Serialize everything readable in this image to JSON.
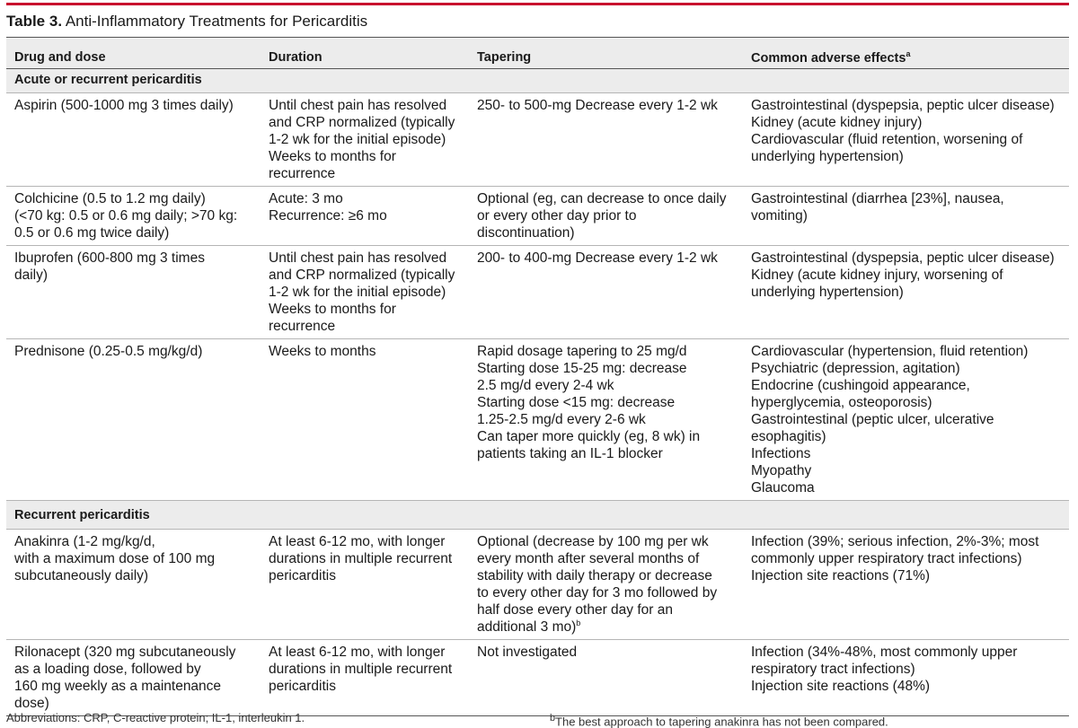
{
  "title": {
    "number": "Table 3.",
    "text": " Anti-Inflammatory Treatments for Pericarditis"
  },
  "headers": {
    "drug": "Drug and dose",
    "duration": "Duration",
    "tapering": "Tapering",
    "adverse": "Common adverse effects",
    "adverse_sup": "a"
  },
  "sections": [
    {
      "label": "Acute or recurrent pericarditis",
      "rows": [
        {
          "drug": [
            "Aspirin (500-1000 mg 3 times daily)"
          ],
          "duration": [
            "Until chest pain has resolved",
            "and CRP normalized (typically",
            "1-2 wk for the initial episode)",
            "Weeks to months for",
            "recurrence"
          ],
          "tapering": [
            "250- to 500-mg Decrease every 1-2 wk"
          ],
          "adverse": [
            "Gastrointestinal (dyspepsia, peptic ulcer disease)",
            "Kidney (acute kidney injury)",
            "Cardiovascular (fluid retention, worsening of",
            "underlying hypertension)"
          ]
        },
        {
          "drug": [
            "Colchicine (0.5 to 1.2 mg daily)",
            "(<70 kg: 0.5 or 0.6 mg daily; >70 kg:",
            "0.5 or 0.6 mg twice daily)"
          ],
          "duration": [
            "Acute: 3 mo",
            "Recurrence: ≥6 mo"
          ],
          "tapering": [
            "Optional (eg, can decrease to once daily",
            "or every other day prior to",
            "discontinuation)"
          ],
          "adverse": [
            "Gastrointestinal (diarrhea [23%], nausea,",
            "vomiting)"
          ]
        },
        {
          "drug": [
            "Ibuprofen (600-800 mg 3 times",
            "daily)"
          ],
          "duration": [
            "Until chest pain has resolved",
            "and CRP normalized (typically",
            "1-2 wk for the initial episode)",
            "Weeks to months for",
            "recurrence"
          ],
          "tapering": [
            "200- to 400-mg Decrease every 1-2 wk"
          ],
          "adverse": [
            "Gastrointestinal (dyspepsia, peptic ulcer disease)",
            "Kidney (acute kidney injury, worsening of",
            "underlying hypertension)"
          ]
        },
        {
          "drug": [
            "Prednisone (0.25-0.5 mg/kg/d)"
          ],
          "duration": [
            "Weeks to months"
          ],
          "tapering": [
            "Rapid dosage tapering to 25 mg/d",
            "Starting dose 15-25 mg: decrease",
            "2.5 mg/d every 2-4 wk",
            "Starting dose <15 mg: decrease",
            "1.25-2.5 mg/d every 2-6 wk",
            "Can taper more quickly (eg, 8 wk) in",
            "patients taking an IL-1 blocker"
          ],
          "adverse": [
            "Cardiovascular (hypertension, fluid retention)",
            "Psychiatric (depression, agitation)",
            "Endocrine (cushingoid appearance,",
            "hyperglycemia, osteoporosis)",
            "Gastrointestinal (peptic ulcer, ulcerative",
            "esophagitis)",
            "Infections",
            "Myopathy",
            "Glaucoma"
          ]
        }
      ]
    },
    {
      "label": "Recurrent pericarditis",
      "rows": [
        {
          "drug": [
            "Anakinra (1-2 mg/kg/d,",
            "with a maximum dose of 100 mg",
            "subcutaneously daily)"
          ],
          "duration": [
            "At least 6-12 mo, with longer",
            "durations in multiple recurrent",
            "pericarditis"
          ],
          "tapering": [
            "Optional (decrease by 100 mg per wk",
            "every month after several months of",
            "stability with daily therapy or decrease",
            "to every other day for 3 mo followed by",
            "half dose every other day for an",
            "additional 3 mo)"
          ],
          "tapering_sup": "b",
          "adverse": [
            "Infection (39%; serious infection, 2%-3%; most",
            "commonly upper respiratory tract infections)",
            "Injection site reactions (71%)"
          ]
        },
        {
          "drug": [
            "Rilonacept (320 mg subcutaneously",
            "as a loading dose, followed by",
            "160 mg weekly as a maintenance",
            "dose)"
          ],
          "duration": [
            "At least 6-12 mo, with longer",
            "durations in multiple recurrent",
            "pericarditis"
          ],
          "tapering": [
            "Not investigated"
          ],
          "adverse": [
            "Infection (34%-48%, most commonly upper",
            "respiratory tract infections)",
            "Injection site reactions (48%)"
          ]
        }
      ]
    }
  ],
  "footer": {
    "left": "Abbreviations: CRP, C-reactive protein; IL-1, interleukin 1.",
    "right_sup": "b",
    "right": "The best approach to tapering anakinra has not been compared."
  }
}
